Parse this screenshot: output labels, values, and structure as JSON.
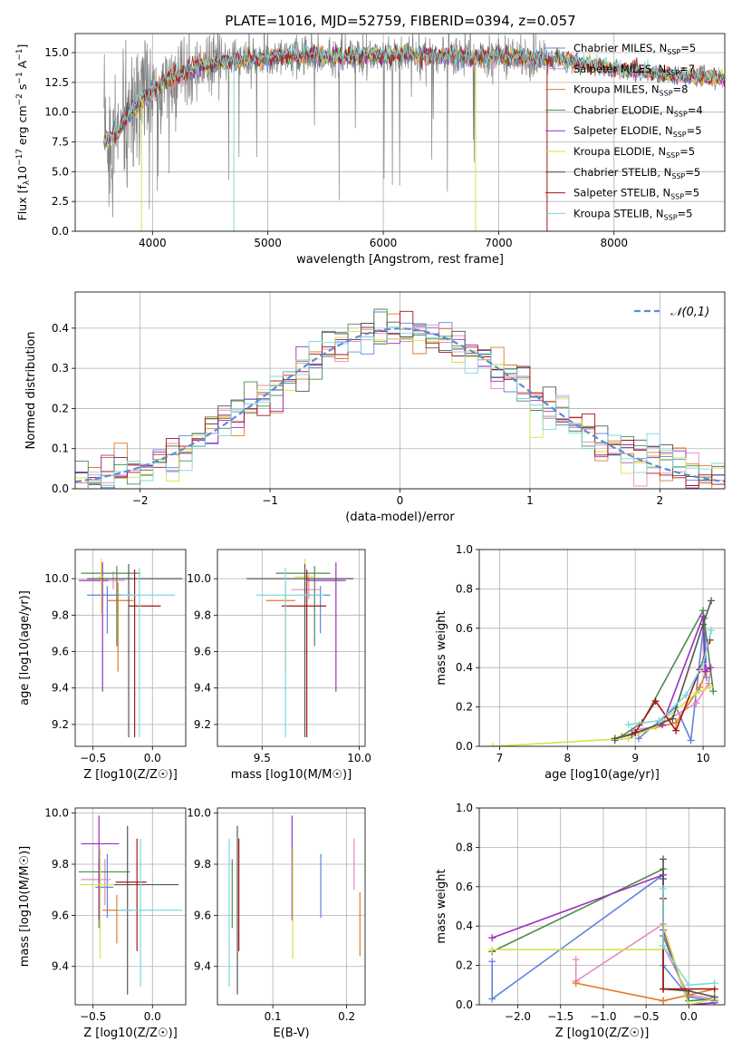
{
  "figure": {
    "title": "PLATE=1016, MJD=52759, FIBERID=0394, z=0.057"
  },
  "series_styles": [
    {
      "name": "Chabrier MILES",
      "nssp": "5",
      "color": "#5e86dc"
    },
    {
      "name": "Salpeter MILES",
      "nssp": "7",
      "color": "#e688c4"
    },
    {
      "name": "Kroupa MILES",
      "nssp": "8",
      "color": "#e07b27"
    },
    {
      "name": "Chabrier ELODIE",
      "nssp": "4",
      "color": "#4f8a4f"
    },
    {
      "name": "Salpeter ELODIE",
      "nssp": "5",
      "color": "#9b2fbd"
    },
    {
      "name": "Kroupa ELODIE",
      "nssp": "5",
      "color": "#d6e24a"
    },
    {
      "name": "Chabrier STELIB",
      "nssp": "5",
      "color": "#555555"
    },
    {
      "name": "Salpeter STELIB",
      "nssp": "5",
      "color": "#a81515"
    },
    {
      "name": "Kroupa STELIB",
      "nssp": "5",
      "color": "#7fd8dc"
    }
  ],
  "data_color": "#808080",
  "chart_data": [
    {
      "id": "spectrum",
      "type": "line",
      "title": "PLATE=1016, MJD=52759, FIBERID=0394, z=0.057",
      "xlabel": "wavelength [Angstrom, rest frame]",
      "ylabel": "Flux [f_λ10^-17 erg cm^-2 s^-1 A^-1]",
      "xlim": [
        3330,
        8960
      ],
      "ylim": [
        0,
        16.6
      ],
      "xticks": [
        4000,
        5000,
        6000,
        7000,
        8000
      ],
      "yticks": [
        0.0,
        2.5,
        5.0,
        7.5,
        10.0,
        12.5,
        15.0
      ],
      "legend": "top-right",
      "continuum": {
        "x": [
          3600,
          3700,
          3800,
          3900,
          4000,
          4100,
          4200,
          4300,
          4400,
          4500,
          4600,
          4700,
          4800,
          4900,
          5000,
          5200,
          5400,
          5600,
          5800,
          6000,
          6200,
          6400,
          6600,
          6800,
          7000,
          7200,
          7400,
          7600,
          7800,
          8000,
          8200,
          8400,
          8600,
          8800,
          8960
        ],
        "y": [
          7.5,
          8.5,
          10.0,
          11.0,
          11.8,
          12.5,
          13.0,
          13.3,
          13.8,
          14.0,
          14.2,
          14.3,
          14.3,
          14.5,
          14.5,
          14.7,
          14.8,
          14.6,
          14.8,
          14.7,
          14.9,
          14.6,
          14.8,
          14.5,
          14.7,
          14.6,
          14.5,
          14.3,
          14.0,
          13.6,
          13.4,
          13.2,
          13.0,
          12.9,
          12.8
        ]
      },
      "data_range": [
        3580,
        7430
      ],
      "model_range": [
        3580,
        8960
      ]
    },
    {
      "id": "residual_hist",
      "type": "histogram",
      "xlabel": "(data-model)/error",
      "ylabel": "Normed distribution",
      "xlim": [
        -2.5,
        2.5
      ],
      "ylim": [
        0,
        0.49
      ],
      "xticks": [
        -2,
        -1,
        0,
        1,
        2
      ],
      "yticks": [
        0.0,
        0.1,
        0.2,
        0.3,
        0.4
      ],
      "legend_label": "𝒩(0,1)",
      "legend": "top-right",
      "bin_width": 0.1,
      "normal": {
        "mean": 0,
        "sigma": 1
      }
    },
    {
      "id": "age_vs_Z",
      "type": "errorbar",
      "xlabel": "Z [log10(Z/Z☉)]",
      "ylabel": "age  [log10(age/yr)]",
      "xlim": [
        -0.65,
        0.28
      ],
      "ylim": [
        9.08,
        10.16
      ],
      "xticks": [
        -0.5,
        0.0
      ],
      "yticks": [
        9.2,
        9.4,
        9.6,
        9.8,
        10.0
      ],
      "points": [
        {
          "x": -0.38,
          "xerr": [
            0.17,
            0.24
          ],
          "y": 9.91,
          "yerr": [
            0.21,
            0.05
          ]
        },
        {
          "x": -0.33,
          "xerr": [
            0.22,
            0.1
          ],
          "y": 9.99,
          "yerr": [
            0.05,
            0.05
          ]
        },
        {
          "x": -0.29,
          "xerr": [
            0.09,
            0.13
          ],
          "y": 9.88,
          "yerr": [
            0.39,
            0.1
          ]
        },
        {
          "x": -0.3,
          "xerr": [
            0.3,
            0.2
          ],
          "y": 10.03,
          "yerr": [
            0.4,
            0.04
          ]
        },
        {
          "x": -0.42,
          "xerr": [
            0.2,
            0.05
          ],
          "y": 9.99,
          "yerr": [
            0.61,
            0.1
          ]
        },
        {
          "x": -0.43,
          "xerr": [
            0.03,
            0.02
          ],
          "y": 10.01,
          "yerr": [
            0.2,
            0.1
          ]
        },
        {
          "x": -0.2,
          "xerr": [
            0.35,
            0.45
          ],
          "y": 10.0,
          "yerr": [
            0.87,
            0.08
          ]
        },
        {
          "x": -0.15,
          "xerr": [
            0.05,
            0.22
          ],
          "y": 9.85,
          "yerr": [
            0.72,
            0.2
          ]
        },
        {
          "x": -0.11,
          "xerr": [
            0.16,
            0.3
          ],
          "y": 9.91,
          "yerr": [
            0.78,
            0.15
          ]
        }
      ]
    },
    {
      "id": "age_vs_mass",
      "type": "errorbar",
      "xlabel": "mass [log10(M/M☉)]",
      "ylabel": "",
      "xlim": [
        9.27,
        10.03
      ],
      "ylim": [
        9.08,
        10.16
      ],
      "xticks": [
        9.5,
        10.0
      ],
      "yticks": [
        9.2,
        9.4,
        9.6,
        9.8,
        10.0
      ],
      "points": [
        {
          "x": 9.8,
          "xerr": [
            0.08,
            0.05
          ],
          "y": 9.91,
          "yerr": [
            0.21,
            0.05
          ]
        },
        {
          "x": 9.74,
          "xerr": [
            0.09,
            0.06
          ],
          "y": 9.94,
          "yerr": [
            0.05,
            0.08
          ]
        },
        {
          "x": 9.62,
          "xerr": [
            0.1,
            0.05
          ],
          "y": 9.88,
          "yerr": [
            0.39,
            0.1
          ]
        },
        {
          "x": 9.77,
          "xerr": [
            0.2,
            0.08
          ],
          "y": 10.03,
          "yerr": [
            0.4,
            0.04
          ]
        },
        {
          "x": 9.88,
          "xerr": [
            0.15,
            0.05
          ],
          "y": 9.99,
          "yerr": [
            0.61,
            0.1
          ]
        },
        {
          "x": 9.72,
          "xerr": [
            0.05,
            0.05
          ],
          "y": 10.01,
          "yerr": [
            0.2,
            0.1
          ]
        },
        {
          "x": 9.72,
          "xerr": [
            0.3,
            0.25
          ],
          "y": 10.0,
          "yerr": [
            0.87,
            0.08
          ]
        },
        {
          "x": 9.73,
          "xerr": [
            0.13,
            0.1
          ],
          "y": 9.85,
          "yerr": [
            0.72,
            0.2
          ]
        },
        {
          "x": 9.62,
          "xerr": [
            0.15,
            0.2
          ],
          "y": 9.91,
          "yerr": [
            0.78,
            0.15
          ]
        }
      ]
    },
    {
      "id": "weight_vs_age",
      "type": "line",
      "xlabel": "age  [log10(age/yr)]",
      "ylabel": "mass weight",
      "xlim": [
        6.7,
        10.32
      ],
      "ylim": [
        0,
        1.0
      ],
      "xticks": [
        7,
        8,
        9,
        10
      ],
      "yticks": [
        0.0,
        0.2,
        0.4,
        0.6,
        0.8,
        1.0
      ],
      "series": [
        {
          "x": [
            9.05,
            9.6,
            9.82,
            10.02,
            10.05
          ],
          "y": [
            0.04,
            0.2,
            0.03,
            0.65,
            0.35
          ]
        },
        {
          "x": [
            8.95,
            9.3,
            9.9,
            10.08,
            10.12
          ],
          "y": [
            0.08,
            0.1,
            0.22,
            0.32,
            0.4
          ]
        },
        {
          "x": [
            8.8,
            9.0,
            9.6,
            9.95,
            10.05
          ],
          "y": [
            0.05,
            0.07,
            0.12,
            0.3,
            0.38
          ]
        },
        {
          "x": [
            8.7,
            9.1,
            10.0,
            10.15
          ],
          "y": [
            0.03,
            0.12,
            0.69,
            0.28
          ]
        },
        {
          "x": [
            9.0,
            9.4,
            10.0,
            10.03,
            10.1
          ],
          "y": [
            0.07,
            0.11,
            0.66,
            0.38,
            0.4
          ]
        },
        {
          "x": [
            6.9,
            8.9,
            9.3,
            9.9,
            10.1
          ],
          "y": [
            0.0,
            0.04,
            0.1,
            0.27,
            0.3
          ]
        },
        {
          "x": [
            8.7,
            8.95,
            9.55,
            10.0,
            10.12
          ],
          "y": [
            0.04,
            0.06,
            0.14,
            0.62,
            0.74
          ]
        },
        {
          "x": [
            9.0,
            9.3,
            9.6,
            9.95,
            10.1
          ],
          "y": [
            0.07,
            0.23,
            0.08,
            0.39,
            0.54
          ]
        },
        {
          "x": [
            8.9,
            9.35,
            9.75,
            10.0,
            10.12
          ],
          "y": [
            0.11,
            0.13,
            0.26,
            0.42,
            0.59
          ]
        }
      ]
    },
    {
      "id": "mass_vs_Z",
      "type": "errorbar",
      "xlabel": "Z [log10(Z/Z☉)]",
      "ylabel": "mass [log10(M/M☉)]",
      "xlim": [
        -0.65,
        0.28
      ],
      "ylim": [
        9.25,
        10.02
      ],
      "xticks": [
        -0.5,
        0.0
      ],
      "yticks": [
        9.4,
        9.6,
        9.8,
        10.0
      ],
      "points": [
        {
          "x": -0.38,
          "xerr": [
            0.1,
            0.05
          ],
          "y": 9.71,
          "yerr": [
            0.12,
            0.13
          ]
        },
        {
          "x": -0.4,
          "xerr": [
            0.2,
            0.05
          ],
          "y": 9.74,
          "yerr": [
            0.1,
            0.08
          ]
        },
        {
          "x": -0.3,
          "xerr": [
            0.12,
            0.13
          ],
          "y": 9.62,
          "yerr": [
            0.13,
            0.06
          ]
        },
        {
          "x": -0.45,
          "xerr": [
            0.17,
            0.26
          ],
          "y": 9.77,
          "yerr": [
            0.22,
            0.05
          ]
        },
        {
          "x": -0.45,
          "xerr": [
            0.15,
            0.17
          ],
          "y": 9.88,
          "yerr": [
            0.3,
            0.11
          ]
        },
        {
          "x": -0.44,
          "xerr": [
            0.17,
            0.27
          ],
          "y": 9.72,
          "yerr": [
            0.29,
            0.14
          ]
        },
        {
          "x": -0.21,
          "xerr": [
            0.11,
            0.43
          ],
          "y": 9.72,
          "yerr": [
            0.43,
            0.23
          ]
        },
        {
          "x": -0.13,
          "xerr": [
            0.18,
            0.08
          ],
          "y": 9.73,
          "yerr": [
            0.27,
            0.17
          ]
        },
        {
          "x": -0.1,
          "xerr": [
            0.2,
            0.35
          ],
          "y": 9.62,
          "yerr": [
            0.3,
            0.28
          ]
        }
      ]
    },
    {
      "id": "mass_vs_ebv",
      "type": "errorbar",
      "xlabel": "E(B-V)",
      "ylabel": "",
      "xlim": [
        0.025,
        0.225
      ],
      "ylim": [
        9.25,
        10.02
      ],
      "xticks": [
        0.1,
        0.2
      ],
      "yticks": [
        9.4,
        9.6,
        9.8,
        10.0
      ],
      "points": [
        {
          "x": 0.165,
          "y": 9.71,
          "yerr": [
            0.12,
            0.13
          ]
        },
        {
          "x": 0.21,
          "y": 9.78,
          "yerr": [
            0.08,
            0.12
          ]
        },
        {
          "x": 0.218,
          "y": 9.56,
          "yerr": [
            0.12,
            0.13
          ]
        },
        {
          "x": 0.045,
          "y": 9.77,
          "yerr": [
            0.22,
            0.05
          ]
        },
        {
          "x": 0.126,
          "y": 9.88,
          "yerr": [
            0.3,
            0.11
          ]
        },
        {
          "x": 0.127,
          "y": 9.72,
          "yerr": [
            0.29,
            0.14
          ]
        },
        {
          "x": 0.052,
          "y": 9.65,
          "yerr": [
            0.36,
            0.3
          ]
        },
        {
          "x": 0.054,
          "y": 9.73,
          "yerr": [
            0.27,
            0.17
          ]
        },
        {
          "x": 0.041,
          "y": 9.62,
          "yerr": [
            0.3,
            0.28
          ]
        }
      ]
    },
    {
      "id": "weight_vs_Z",
      "type": "line",
      "xlabel": "Z [log10(Z/Z☉)]",
      "ylabel": "mass weight",
      "xlim": [
        -2.45,
        0.42
      ],
      "ylim": [
        0,
        1.0
      ],
      "xticks": [
        -2.0,
        -1.5,
        -1.0,
        -0.5,
        0.0
      ],
      "yticks": [
        0.0,
        0.2,
        0.4,
        0.6,
        0.8,
        1.0
      ],
      "series": [
        {
          "x": [
            -2.3,
            -2.3,
            -0.3,
            -0.3,
            0.0,
            0.3
          ],
          "y": [
            0.22,
            0.03,
            0.66,
            0.2,
            0.04,
            0.02
          ]
        },
        {
          "x": [
            -1.32,
            -1.32,
            -0.3,
            -0.3,
            0.0,
            0.3
          ],
          "y": [
            0.23,
            0.12,
            0.41,
            0.3,
            0.05,
            0.03
          ]
        },
        {
          "x": [
            -1.32,
            -0.3,
            -0.3,
            0.0,
            0.3
          ],
          "y": [
            0.11,
            0.02,
            0.02,
            0.05,
            0.08
          ]
        },
        {
          "x": [
            -2.3,
            -0.3,
            -0.3,
            0.0,
            0.3
          ],
          "y": [
            0.27,
            0.69,
            0.35,
            0.02,
            0.03
          ]
        },
        {
          "x": [
            -2.3,
            -0.3,
            -0.3,
            0.0,
            0.3
          ],
          "y": [
            0.34,
            0.66,
            0.38,
            0.0,
            0.01
          ]
        },
        {
          "x": [
            -2.3,
            -0.3,
            -0.3,
            0.0,
            0.3
          ],
          "y": [
            0.28,
            0.28,
            0.4,
            0.0,
            0.03
          ]
        },
        {
          "x": [
            -0.3,
            -0.3,
            -0.3,
            0.0,
            0.3
          ],
          "y": [
            0.74,
            0.64,
            0.08,
            0.07,
            0.04
          ]
        },
        {
          "x": [
            -0.3,
            -0.3,
            0.0,
            0.3
          ],
          "y": [
            0.54,
            0.08,
            0.08,
            0.08
          ]
        },
        {
          "x": [
            -0.3,
            -0.3,
            0.0,
            0.3
          ],
          "y": [
            0.59,
            0.3,
            0.1,
            0.11
          ]
        }
      ]
    }
  ]
}
